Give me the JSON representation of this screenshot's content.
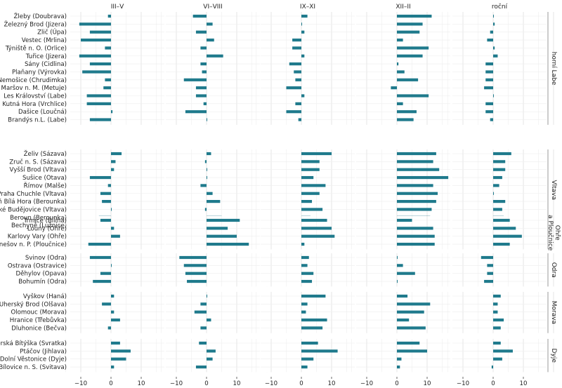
{
  "chart_data": {
    "type": "bar",
    "orientation": "horizontal",
    "grid": true,
    "xlim": [
      -15,
      20
    ],
    "xticks": [
      -10,
      0,
      10
    ],
    "bar_color": "#1f7a8c",
    "panels": [
      "III–V",
      "VI–VIII",
      "IX–XI",
      "XII–II",
      "roční"
    ],
    "groups": [
      {
        "name": "horní Labe",
        "rows": [
          {
            "station": "Žleby (Doubrava)",
            "values": [
              -1,
              -4.5,
              2,
              11.5,
              0
            ]
          },
          {
            "station": "Železný Brod (Jizera)",
            "values": [
              -10.5,
              2,
              0,
              8.5,
              0.5
            ]
          },
          {
            "station": "Zlič (Úpa)",
            "values": [
              -7,
              -3.5,
              1,
              7.5,
              -1
            ]
          },
          {
            "station": "Vestec (Mrlina)",
            "values": [
              -10,
              2.5,
              -3,
              2,
              -2
            ]
          },
          {
            "station": "Týniště n. O. (Orlice)",
            "values": [
              -2,
              -2,
              -3,
              10.5,
              0.5
            ]
          },
          {
            "station": "Tuřice (Jizera)",
            "values": [
              -10.5,
              5.5,
              1,
              8.5,
              1.5
            ]
          },
          {
            "station": "Sány (Cidlina)",
            "values": [
              -7,
              -2,
              -4,
              0.5,
              -2.5
            ]
          },
          {
            "station": "Plaňany (Výrovka)",
            "values": [
              -9.5,
              -1.5,
              -2.5,
              2.5,
              -2.5
            ]
          },
          {
            "station": "Nemošice (Chrudimka)",
            "values": [
              -2,
              -7.5,
              -2,
              7,
              -2.5
            ]
          },
          {
            "station": "Maršov n. M. (Metuje)",
            "values": [
              -2.5,
              -3.5,
              -5,
              -2,
              -3
            ]
          },
          {
            "station": "Les Království (Labe)",
            "values": [
              -8,
              -3.5,
              1,
              10.5,
              0
            ]
          },
          {
            "station": "Kutná Hora (Vrchlice)",
            "values": [
              -8,
              -1,
              -2,
              2,
              -2.5
            ]
          },
          {
            "station": "Dašice (Loučná)",
            "values": [
              0.5,
              -7,
              -5,
              6.5,
              -2.5
            ]
          },
          {
            "station": "Brandýs n.L. (Labe)",
            "values": [
              -7,
              0,
              -1,
              5.5,
              -1
            ]
          }
        ]
      },
      {
        "name": "Vltava",
        "rows": [
          {
            "station": "Želiv (Sázava)",
            "values": [
              3.5,
              1.5,
              10,
              13,
              6
            ]
          },
          {
            "station": "Zruč n. S. (Sázava)",
            "values": [
              1.5,
              -0.5,
              6,
              12,
              4
            ]
          },
          {
            "station": "Vyšší Brod (Vltava)",
            "values": [
              1,
              0,
              6,
              14,
              4
            ]
          },
          {
            "station": "Sušice (Otava)",
            "values": [
              -7,
              0,
              4,
              17,
              3
            ]
          },
          {
            "station": "Římov (Malše)",
            "values": [
              -1,
              -2,
              8,
              12,
              2
            ]
          },
          {
            "station": "Praha Chuchle (Vltava)",
            "values": [
              -3.5,
              2,
              6,
              13.5,
              0
            ]
          },
          {
            "station": "Plzeň Bílá Hora (Berounka)",
            "values": [
              -3,
              4.5,
              3.5,
              13,
              4
            ]
          },
          {
            "station": "České Budějovice (Vltava)",
            "values": [
              0,
              -0.5,
              7,
              11.5,
              3
            ]
          },
          {
            "station": "Beroun (Berounka)",
            "values": [
              -4,
              5,
              3,
              11,
              3.5
            ]
          },
          {
            "station": "Bechyně (Lužnice)",
            "values": [
              0,
              2,
              9.5,
              14,
              5
            ]
          }
        ]
      },
      {
        "name": "Ohře a Ploučnice",
        "rows": [
          {
            "station": "Trmice (Bílina)",
            "values": [
              -3.5,
              11,
              8.5,
              5,
              5.5
            ]
          },
          {
            "station": "Louny (Ohře)",
            "values": [
              1,
              7,
              10,
              12,
              7.5
            ]
          },
          {
            "station": "Karlovy Vary (Ohře)",
            "values": [
              3,
              10,
              11,
              12.5,
              9.5
            ]
          },
          {
            "station": "Benešov n. P. (Ploučnice)",
            "values": [
              -7.5,
              14,
              1,
              12.5,
              5.5
            ]
          }
        ]
      },
      {
        "name": "Odra",
        "rows": [
          {
            "station": "Svinov (Odra)",
            "values": [
              -7,
              -9,
              2.5,
              0,
              -4
            ]
          },
          {
            "station": "Ostrava (Ostravice)",
            "values": [
              0,
              -7.5,
              2,
              2,
              -2
            ]
          },
          {
            "station": "Děhylov (Opava)",
            "values": [
              -3.5,
              -7,
              4,
              6,
              -2
            ]
          },
          {
            "station": "Bohumín (Odra)",
            "values": [
              -6,
              -6.5,
              3.5,
              0,
              -3
            ]
          }
        ]
      },
      {
        "name": "Morava",
        "rows": [
          {
            "station": "Vyškov (Haná)",
            "values": [
              1,
              0,
              8,
              3.5,
              2.5
            ]
          },
          {
            "station": "Uherský Brod (Olšava)",
            "values": [
              -3,
              -2,
              2,
              11,
              1.5
            ]
          },
          {
            "station": "Olomouc (Morava)",
            "values": [
              1,
              -4,
              1.5,
              9,
              1.5
            ]
          },
          {
            "station": "Hranice (Třebůvka)",
            "values": [
              3,
              1.5,
              8.5,
              4,
              3.5
            ]
          },
          {
            "station": "Dluhonice (Bečva)",
            "values": [
              -1,
              -2,
              7,
              9.5,
              2.5
            ]
          }
        ]
      },
      {
        "name": "Dyje",
        "rows": [
          {
            "station": "Veverská Bítýška (Svratka)",
            "values": [
              3,
              -2.5,
              5.5,
              7.5,
              2.5
            ]
          },
          {
            "station": "Ptáčov (Jihlava)",
            "values": [
              6.5,
              3,
              12,
              10,
              6.5
            ]
          },
          {
            "station": "Dolní Věstonice (Dyje)",
            "values": [
              5,
              2,
              4,
              1.5,
              3
            ]
          },
          {
            "station": "Bílovice n. S. (Svitava)",
            "values": [
              1,
              -3.5,
              2,
              1,
              -0.5
            ]
          }
        ]
      }
    ]
  }
}
